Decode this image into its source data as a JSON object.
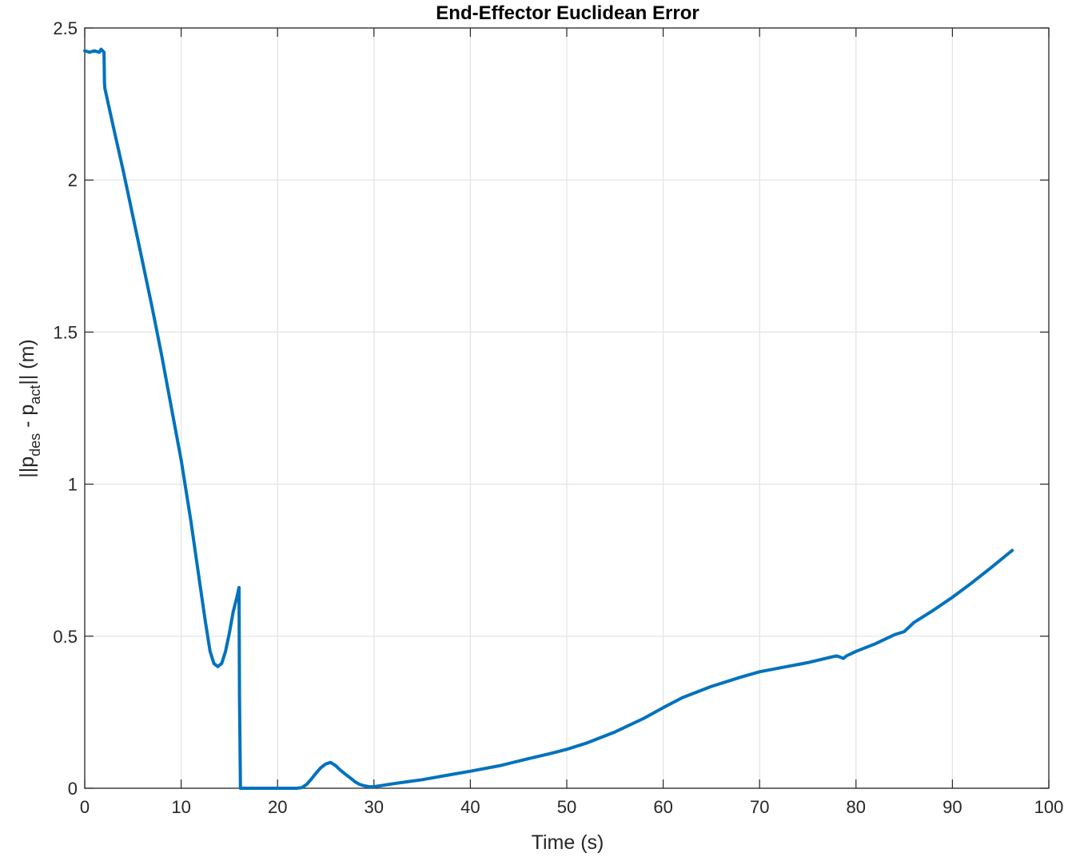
{
  "chart_data": {
    "type": "line",
    "title": "End-Effector Euclidean Error",
    "xlabel": "Time (s)",
    "ylabel": {
      "p1": "||p",
      "sub1": "des",
      "p2": " - p",
      "sub2": "act",
      "p3": "|| (m)"
    },
    "xlim": [
      0,
      100
    ],
    "ylim": [
      0,
      2.5
    ],
    "xticks": [
      0,
      10,
      20,
      30,
      40,
      50,
      60,
      70,
      80,
      90,
      100
    ],
    "xtick_labels": [
      "0",
      "10",
      "20",
      "30",
      "40",
      "50",
      "60",
      "70",
      "80",
      "90",
      "100"
    ],
    "yticks": [
      0,
      0.5,
      1,
      1.5,
      2,
      2.5
    ],
    "ytick_labels": [
      "0",
      "0.5",
      "1",
      "1.5",
      "2",
      "2.5"
    ],
    "grid": true,
    "line_color": "#0072BD",
    "series": [
      {
        "x": [
          0,
          0.5,
          1.0,
          1.5,
          1.7,
          2.0,
          2.05,
          2.1,
          3,
          4,
          5,
          6,
          7,
          8,
          9,
          10,
          11,
          12,
          12.5,
          13,
          13.4,
          13.8,
          14.2,
          14.6,
          15.0,
          15.4,
          15.8,
          16.0,
          16.05,
          16.15,
          18,
          20,
          22,
          22.5,
          23,
          23.5,
          24,
          24.5,
          25,
          25.5,
          26,
          26.5,
          27,
          27.5,
          28,
          28.5,
          29,
          29.5,
          30,
          32,
          35,
          38,
          40,
          43,
          46,
          48,
          49,
          50,
          52,
          55,
          58,
          60,
          62,
          65,
          68,
          70,
          72,
          75,
          77.5,
          78.0,
          78.3,
          78.7,
          79,
          80,
          82,
          84,
          85,
          86,
          88,
          90,
          92,
          94,
          96.2
        ],
        "y": [
          2.425,
          2.42,
          2.425,
          2.42,
          2.43,
          2.42,
          2.32,
          2.3,
          2.17,
          2.03,
          1.88,
          1.73,
          1.58,
          1.42,
          1.25,
          1.08,
          0.88,
          0.66,
          0.55,
          0.45,
          0.41,
          0.4,
          0.41,
          0.45,
          0.51,
          0.58,
          0.63,
          0.66,
          0.3,
          0.0,
          0.0,
          0.0,
          0.0,
          0.002,
          0.012,
          0.03,
          0.05,
          0.068,
          0.08,
          0.085,
          0.075,
          0.06,
          0.047,
          0.035,
          0.022,
          0.013,
          0.008,
          0.005,
          0.005,
          0.015,
          0.028,
          0.045,
          0.056,
          0.074,
          0.097,
          0.112,
          0.12,
          0.128,
          0.148,
          0.185,
          0.23,
          0.265,
          0.298,
          0.335,
          0.365,
          0.383,
          0.395,
          0.413,
          0.432,
          0.435,
          0.432,
          0.427,
          0.435,
          0.45,
          0.475,
          0.505,
          0.515,
          0.545,
          0.585,
          0.628,
          0.675,
          0.725,
          0.782
        ]
      }
    ]
  }
}
